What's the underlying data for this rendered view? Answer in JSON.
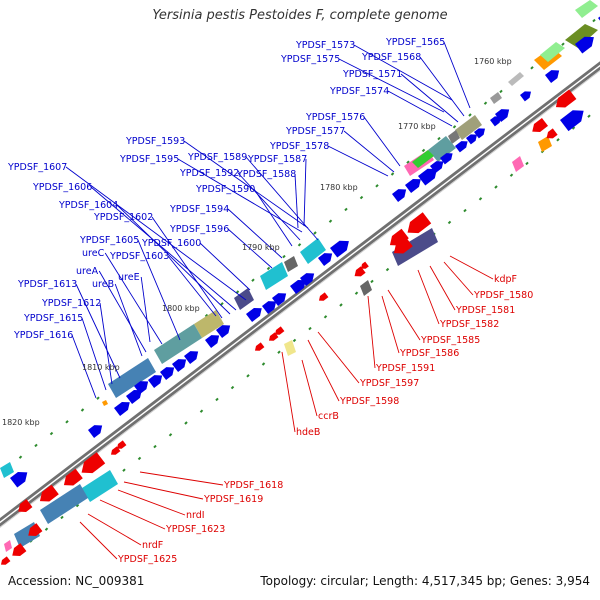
{
  "title": "Yersinia pestis Pestoides F, complete genome",
  "footer": {
    "accession": "Accession: NC_009381",
    "summary": "Topology: circular; Length: 4,517,345 bp; Genes: 3,954"
  },
  "colors": {
    "forward_label": "#0000cc",
    "reverse_label": "#dd0000",
    "forward_cds": "#0000e6",
    "reverse_cds": "#ee0000",
    "backbone": "#666666",
    "tick": "#2e8b2e"
  },
  "ruler": [
    "1760 kbp",
    "1770 kbp",
    "1780 kbp",
    "1790 kbp",
    "1800 kbp",
    "1810 kbp",
    "1820 kbp"
  ],
  "forward_labels": [
    "YPDSF_1573",
    "YPDSF_1565",
    "YPDSF_1575",
    "YPDSF_1568",
    "YPDSF_1571",
    "YPDSF_1574",
    "YPDSF_1576",
    "YPDSF_1577",
    "YPDSF_1578",
    "YPDSF_1593",
    "YPDSF_1595",
    "YPDSF_1589",
    "YPDSF_1587",
    "YPDSF_1592",
    "YPDSF_1588",
    "YPDSF_1590",
    "YPDSF_1607",
    "YPDSF_1606",
    "YPDSF_1604",
    "YPDSF_1594",
    "YPDSF_1602",
    "YPDSF_1596",
    "YPDSF_1605",
    "YPDSF_1600",
    "ureC",
    "YPDSF_1603",
    "ureA",
    "ureB",
    "ureE",
    "YPDSF_1613",
    "YPDSF_1612",
    "YPDSF_1615",
    "YPDSF_1616"
  ],
  "reverse_labels": [
    "kdpF",
    "YPDSF_1580",
    "YPDSF_1581",
    "YPDSF_1582",
    "YPDSF_1585",
    "YPDSF_1586",
    "YPDSF_1591",
    "YPDSF_1597",
    "YPDSF_1598",
    "ccrB",
    "hdeB",
    "YPDSF_1618",
    "YPDSF_1619",
    "nrdI",
    "YPDSF_1623",
    "nrdF",
    "YPDSF_1625"
  ]
}
